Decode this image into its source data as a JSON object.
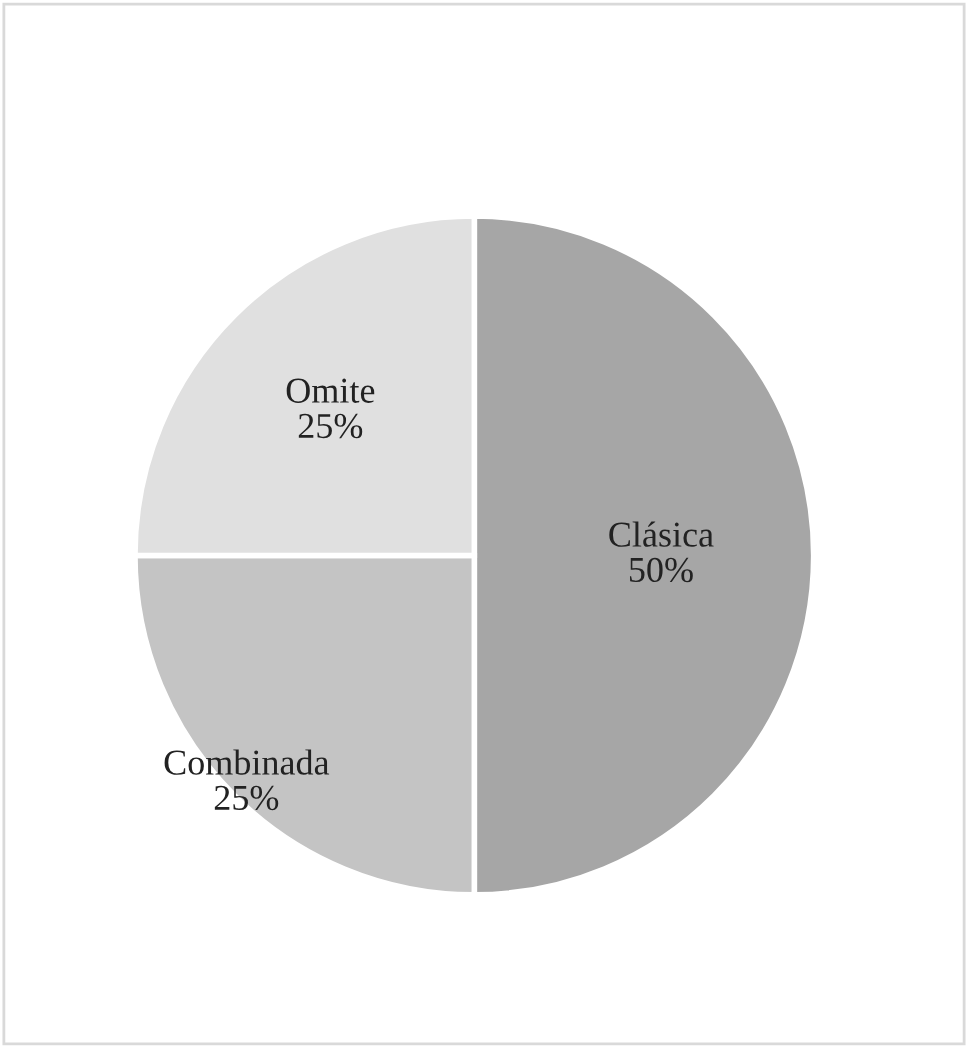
{
  "chart_data": {
    "type": "pie",
    "categories": [
      "Clásica",
      "Combinada",
      "Omite"
    ],
    "values": [
      50,
      25,
      25
    ],
    "value_labels": [
      "50%",
      "25%",
      "25%"
    ],
    "colors": [
      "#a6a6a6",
      "#c4c4c4",
      "#e0e0e0"
    ]
  }
}
